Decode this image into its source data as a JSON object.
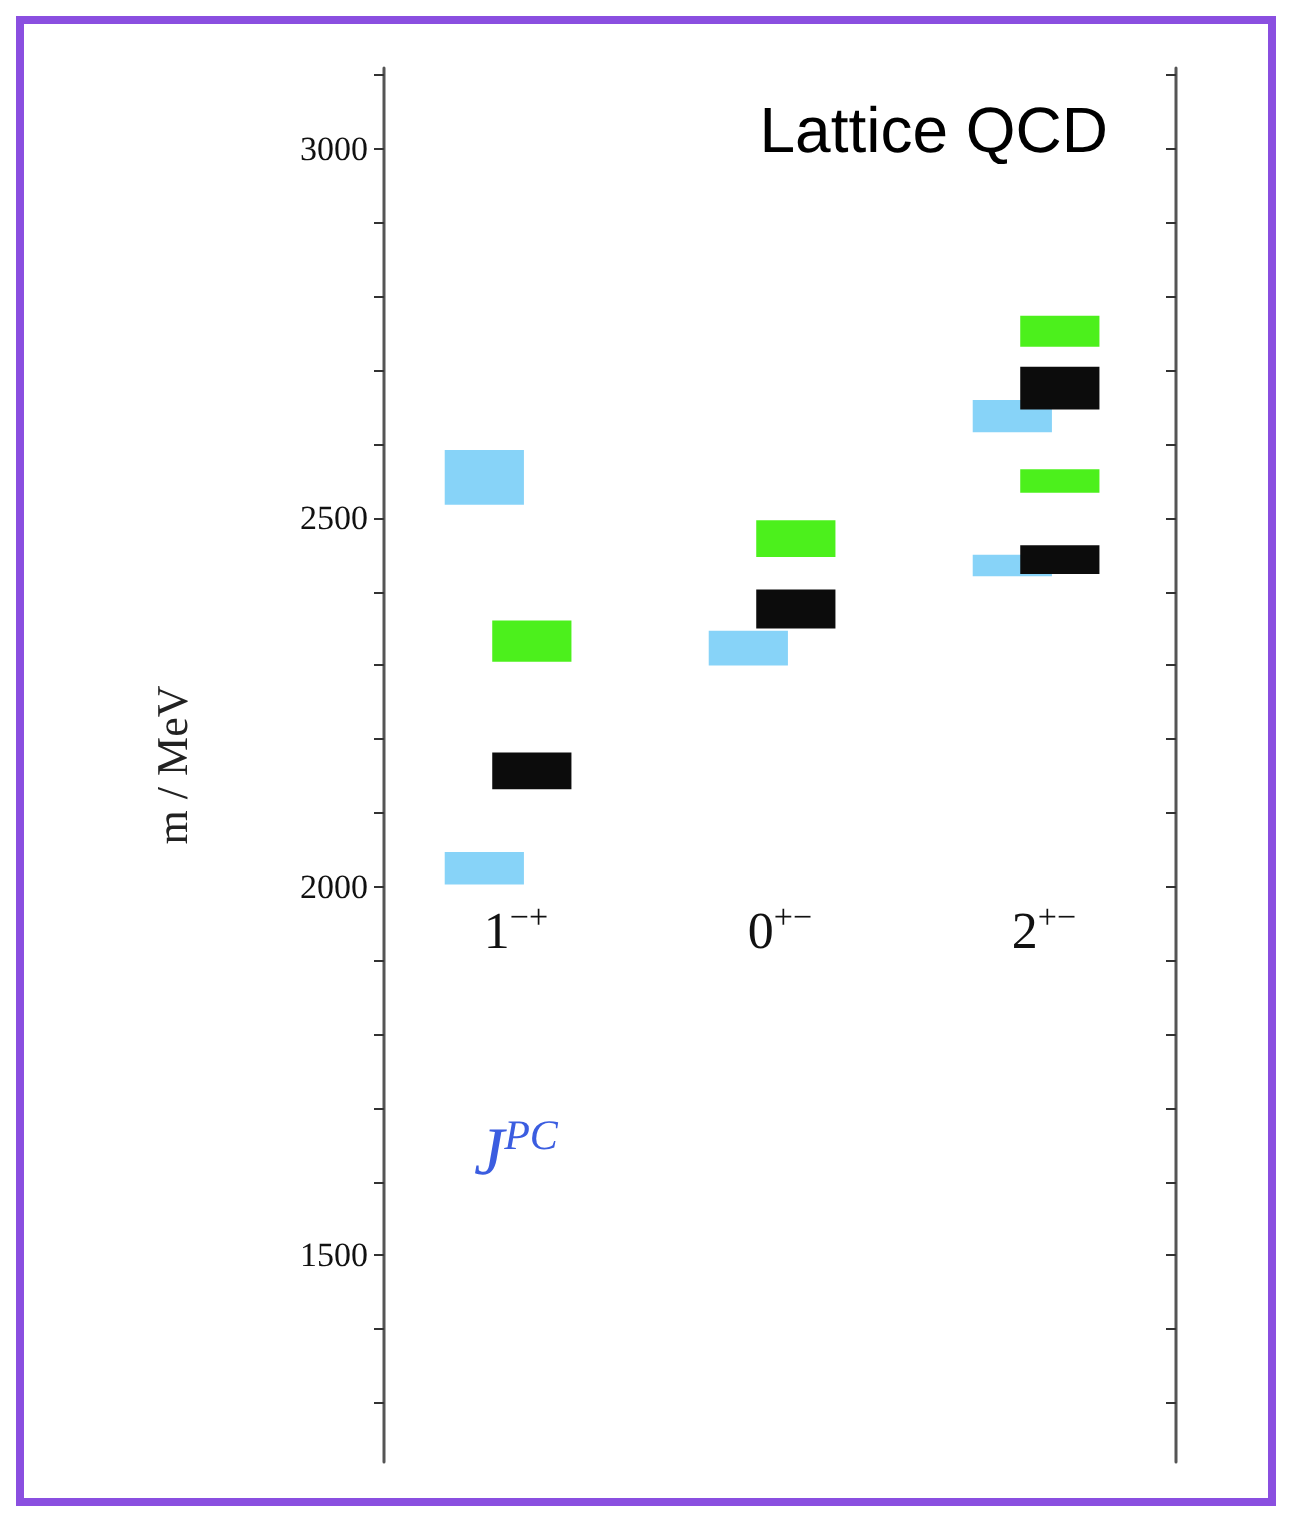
{
  "chart_data": {
    "type": "bar",
    "title": "Lattice QCD",
    "ylabel": "m / MeV",
    "annotations": [
      "J$^{PC}$"
    ],
    "categories": [
      "1$^{−+}$",
      "0$^{+−}$",
      "2$^{+−}$"
    ],
    "series": [
      {
        "color": "#87d3f8",
        "base": [
          2518,
          2300,
          2616
        ],
        "values": [
          74,
          47,
          44
        ]
      },
      {
        "color": "#87d3f8",
        "base": [
          2003,
          null,
          2421
        ],
        "values": [
          44,
          null,
          29
        ]
      },
      {
        "color": "#0c0c0c",
        "base": [
          2132,
          2350,
          2647
        ],
        "values": [
          50,
          53,
          58
        ]
      },
      {
        "color": "#0c0c0c",
        "base": [
          null,
          null,
          2424
        ],
        "values": [
          null,
          null,
          39
        ]
      },
      {
        "color": "#4cf01c",
        "base": [
          2305,
          2447,
          2732
        ],
        "values": [
          56,
          50,
          42
        ]
      },
      {
        "color": "#4cf01c",
        "base": [
          null,
          null,
          2534
        ],
        "values": [
          null,
          null,
          32
        ]
      }
    ],
    "ylim": [
      1220,
      3110
    ],
    "yticks": [
      {
        "value": 1300,
        "label": null
      },
      {
        "value": 1400,
        "label": null
      },
      1500,
      {
        "value": 1600,
        "label": null
      },
      {
        "value": 1700,
        "label": null
      },
      {
        "value": 1800,
        "label": null
      },
      {
        "value": 1900,
        "label": null
      },
      2000,
      {
        "value": 2100,
        "label": null
      },
      {
        "value": 2200,
        "label": null
      },
      {
        "value": 2300,
        "label": null
      },
      {
        "value": 2400,
        "label": null
      },
      2500,
      {
        "value": 2600,
        "label": null
      },
      {
        "value": 2700,
        "label": null
      },
      {
        "value": 2800,
        "label": null
      },
      {
        "value": 2900,
        "label": null
      },
      3000,
      {
        "value": 3100,
        "label": null
      }
    ],
    "grid": false
  }
}
